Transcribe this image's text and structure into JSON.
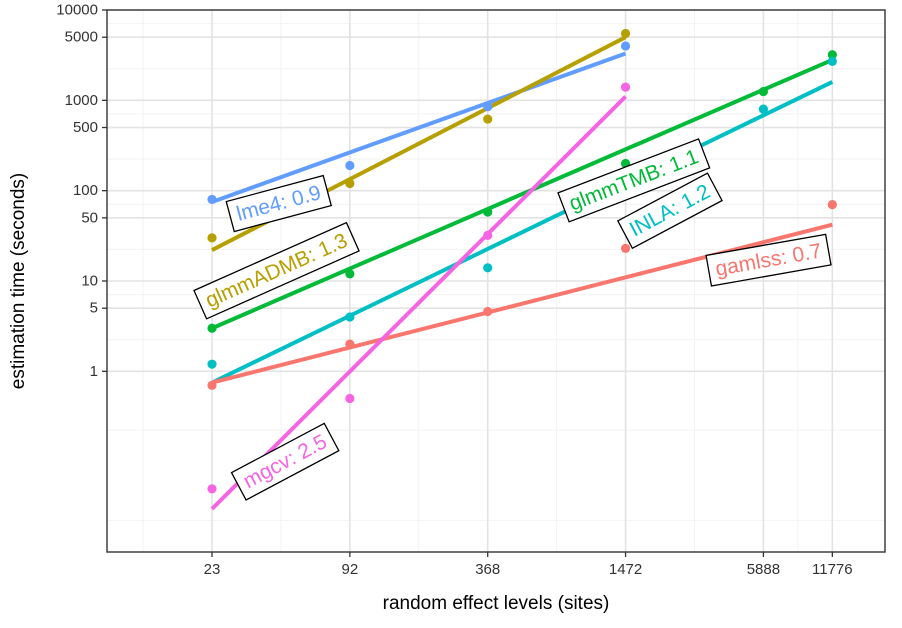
{
  "chart_data": {
    "type": "scatter",
    "title": "",
    "xlabel": "random effect levels (sites)",
    "ylabel": "estimation time (seconds)",
    "x_scale": "log",
    "y_scale": "log",
    "xlim": [
      8,
      20000
    ],
    "ylim": [
      0.01,
      10000
    ],
    "x_ticks": [
      23,
      92,
      368,
      1472,
      5888,
      11776
    ],
    "x_tick_labels": [
      "23",
      "92",
      "368",
      "1472",
      "5888",
      "11776"
    ],
    "y_ticks": [
      1,
      5,
      10,
      50,
      100,
      500,
      1000,
      5000,
      10000
    ],
    "y_tick_labels": [
      "1",
      "5",
      "10",
      "50",
      "100",
      "500",
      "1000",
      "5000",
      "10000"
    ],
    "grid": true,
    "legend": "none",
    "series": [
      {
        "label": "lme4: 0.9",
        "color": "#619cff",
        "points": [
          [
            23,
            80
          ],
          [
            92,
            190
          ],
          [
            368,
            850
          ],
          [
            1472,
            4000
          ]
        ],
        "fit": [
          [
            23,
            75
          ],
          [
            1472,
            3300
          ]
        ]
      },
      {
        "label": "glmmADMB: 1.3",
        "color": "#b79f00",
        "points": [
          [
            23,
            30
          ],
          [
            92,
            120
          ],
          [
            368,
            620
          ],
          [
            1472,
            5500
          ]
        ],
        "fit": [
          [
            23,
            22
          ],
          [
            1472,
            5000
          ]
        ]
      },
      {
        "label": "glmmTMB: 1.1",
        "color": "#00ba38",
        "points": [
          [
            23,
            3
          ],
          [
            92,
            12
          ],
          [
            368,
            58
          ],
          [
            1472,
            200
          ],
          [
            5888,
            1250
          ],
          [
            11776,
            3200
          ]
        ],
        "fit": [
          [
            23,
            3
          ],
          [
            11776,
            2800
          ]
        ]
      },
      {
        "label": "INLA: 1.2",
        "color": "#00bfc4",
        "points": [
          [
            23,
            1.2
          ],
          [
            92,
            4
          ],
          [
            368,
            14
          ],
          [
            5888,
            800
          ],
          [
            11776,
            2700
          ]
        ],
        "fit": [
          [
            23,
            0.75
          ],
          [
            11776,
            1600
          ]
        ]
      },
      {
        "label": "gamlss: 0.7",
        "color": "#f8766d",
        "points": [
          [
            23,
            0.7
          ],
          [
            92,
            2
          ],
          [
            368,
            4.6
          ],
          [
            1472,
            23
          ],
          [
            11776,
            70
          ]
        ],
        "fit": [
          [
            23,
            0.75
          ],
          [
            11776,
            42
          ]
        ]
      },
      {
        "label": "mgcv: 2.5",
        "color": "#f564e3",
        "points": [
          [
            23,
            0.05
          ],
          [
            92,
            0.5
          ],
          [
            368,
            32
          ],
          [
            1472,
            1400
          ]
        ],
        "fit": [
          [
            23,
            0.03
          ],
          [
            1472,
            1100
          ]
        ]
      }
    ],
    "annotations": [
      {
        "text": "lme4: 0.9",
        "series": 0,
        "at": [
          45,
          72
        ],
        "angle": -15
      },
      {
        "text": "glmmADMB: 1.3",
        "series": 1,
        "at": [
          44,
          13
        ],
        "angle": -24
      },
      {
        "text": "glmmTMB: 1.1",
        "series": 2,
        "at": [
          1600,
          130
        ],
        "angle": -21
      },
      {
        "text": "INLA: 1.2",
        "series": 3,
        "at": [
          2300,
          60
        ],
        "angle": -28
      },
      {
        "text": "gamlss: 0.7",
        "series": 4,
        "at": [
          6200,
          17
        ],
        "angle": -10
      },
      {
        "text": "mgcv: 2.5",
        "series": 5,
        "at": [
          48,
          0.1
        ],
        "angle": -28
      }
    ]
  }
}
